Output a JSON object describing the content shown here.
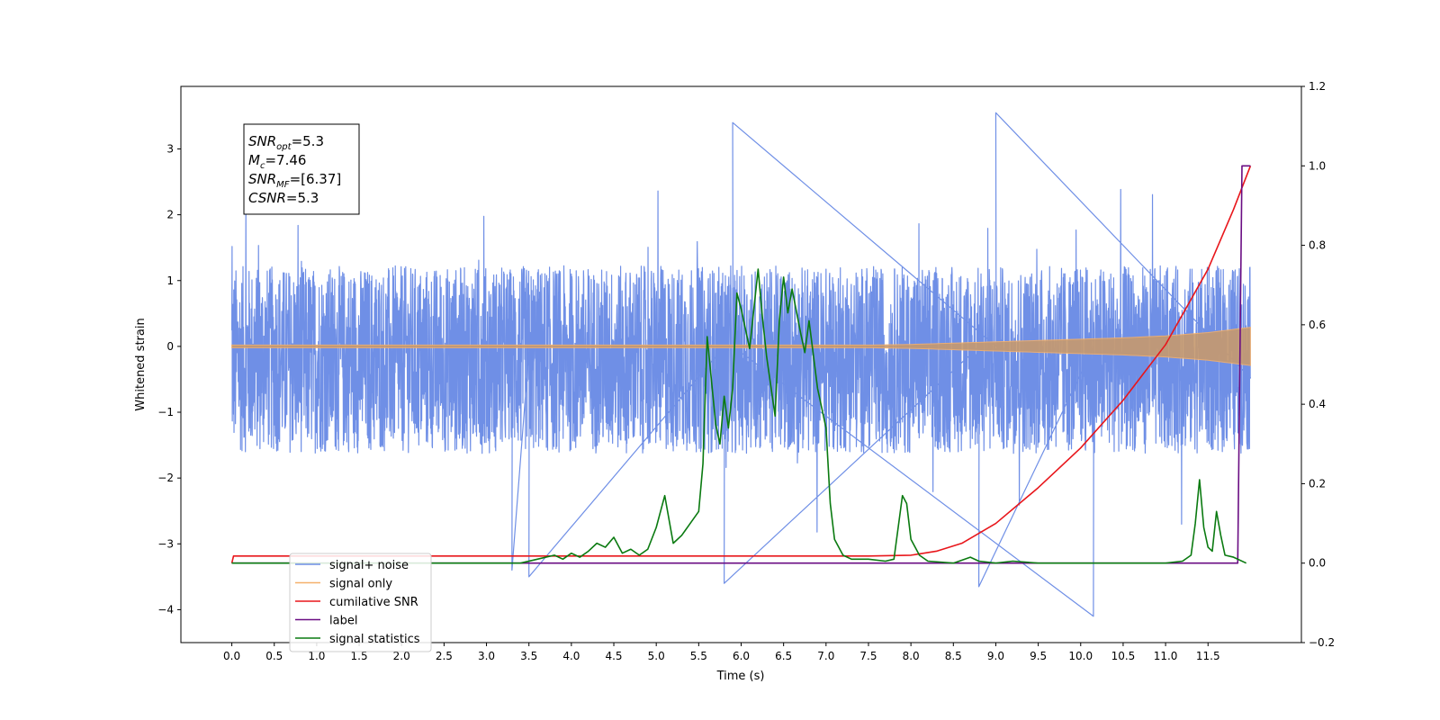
{
  "chart_data": {
    "type": "line",
    "xlabel": "Time (s)",
    "ylabel_left": "Whitened strain",
    "xlim": [
      -0.6,
      12.6
    ],
    "ylim_left": [
      -4.5,
      3.95
    ],
    "ylim_right": [
      -0.2,
      1.2
    ],
    "x_ticks": [
      0.0,
      0.5,
      1.0,
      1.5,
      2.0,
      2.5,
      3.0,
      3.5,
      4.0,
      4.5,
      5.0,
      5.5,
      6.0,
      6.5,
      7.0,
      7.5,
      8.0,
      8.5,
      9.0,
      9.5,
      10.0,
      10.5,
      11.0,
      11.5
    ],
    "x_tick_labels": [
      "0.0",
      "0.5",
      "1.0",
      "1.5",
      "2.0",
      "2.5",
      "3.0",
      "3.5",
      "4.0",
      "4.5",
      "5.0",
      "5.5",
      "6.0",
      "6.5",
      "7.0",
      "7.5",
      "8.0",
      "8.5",
      "9.0",
      "9.5",
      "10.0",
      "10.5",
      "11.0",
      "11.5"
    ],
    "y_left_ticks": [
      3,
      2,
      1,
      0,
      -1,
      -2,
      -3,
      -4
    ],
    "y_left_tick_labels": [
      "3",
      "2",
      "1",
      "0",
      "−1",
      "−2",
      "−3",
      "−4"
    ],
    "y_right_ticks": [
      1.2,
      1.0,
      0.8,
      0.6,
      0.4,
      0.2,
      0.0,
      -0.2
    ],
    "y_right_tick_labels": [
      "1.2",
      "1.0",
      "0.8",
      "0.6",
      "0.4",
      "0.2",
      "0.0",
      "−0.2"
    ],
    "grid": false,
    "legend_position": "bottom-left",
    "info_box": {
      "position": "top-left",
      "lines": [
        {
          "sym": "SNR",
          "sub": "opt",
          "rest": "=5.3"
        },
        {
          "sym": "M",
          "sub": "c",
          "rest": "=7.46"
        },
        {
          "sym": "SNR",
          "sub": "MF",
          "rest": "=[6.37]"
        },
        {
          "sym": "CSNR",
          "sub": "",
          "rest": "=5.3"
        }
      ]
    },
    "series": [
      {
        "name": "signal+ noise",
        "axis": "left",
        "color": "#6f8fe6",
        "kind": "noise",
        "x_range": [
          0.0,
          12.0
        ],
        "typical_range": [
          -1.7,
          1.3
        ],
        "extremes": [
          [
            9.0,
            3.55
          ],
          [
            5.9,
            3.4
          ],
          [
            10.15,
            -4.1
          ],
          [
            8.8,
            -3.65
          ],
          [
            5.8,
            -3.6
          ],
          [
            3.5,
            -3.5
          ],
          [
            3.3,
            -3.4
          ]
        ]
      },
      {
        "name": "signal only",
        "axis": "left",
        "color": "#f5b06a",
        "kind": "chirp",
        "x": [
          0.0,
          7.5,
          8.0,
          8.5,
          9.0,
          9.5,
          10.0,
          10.5,
          11.0,
          11.5,
          12.0
        ],
        "envelope": [
          0.02,
          0.02,
          0.03,
          0.05,
          0.07,
          0.09,
          0.11,
          0.13,
          0.16,
          0.21,
          0.29
        ]
      },
      {
        "name": "cumilative SNR",
        "axis": "right",
        "color": "#e8161b",
        "x": [
          0.0,
          0.02,
          7.5,
          8.0,
          8.3,
          8.6,
          9.0,
          9.5,
          10.0,
          10.5,
          11.0,
          11.5,
          11.8,
          12.0
        ],
        "y": [
          0.0,
          0.018,
          0.018,
          0.02,
          0.03,
          0.05,
          0.1,
          0.19,
          0.29,
          0.41,
          0.55,
          0.74,
          0.89,
          1.0
        ]
      },
      {
        "name": "label",
        "axis": "right",
        "color": "#6a0d83",
        "x": [
          0.0,
          11.85,
          11.9,
          12.0
        ],
        "y": [
          0.0,
          0.0,
          1.0,
          1.0
        ]
      },
      {
        "name": "signal statistics",
        "axis": "right",
        "color": "#0a7a10",
        "x": [
          0.0,
          3.4,
          3.6,
          3.8,
          3.9,
          4.0,
          4.1,
          4.2,
          4.3,
          4.4,
          4.5,
          4.6,
          4.7,
          4.8,
          4.9,
          5.0,
          5.1,
          5.2,
          5.3,
          5.4,
          5.5,
          5.55,
          5.6,
          5.7,
          5.75,
          5.8,
          5.85,
          5.9,
          5.95,
          6.0,
          6.1,
          6.2,
          6.25,
          6.3,
          6.4,
          6.45,
          6.5,
          6.55,
          6.6,
          6.7,
          6.75,
          6.8,
          6.9,
          7.0,
          7.05,
          7.1,
          7.2,
          7.3,
          7.5,
          7.7,
          7.8,
          7.9,
          7.95,
          8.0,
          8.1,
          8.2,
          8.5,
          8.7,
          8.8,
          9.0,
          9.2,
          9.5,
          10.0,
          10.5,
          11.0,
          11.2,
          11.3,
          11.35,
          11.4,
          11.45,
          11.5,
          11.55,
          11.6,
          11.65,
          11.7,
          11.8,
          11.95
        ],
        "y": [
          0.0,
          0.0,
          0.01,
          0.02,
          0.01,
          0.025,
          0.015,
          0.03,
          0.05,
          0.04,
          0.065,
          0.025,
          0.035,
          0.02,
          0.035,
          0.09,
          0.17,
          0.05,
          0.07,
          0.1,
          0.13,
          0.25,
          0.57,
          0.35,
          0.3,
          0.42,
          0.34,
          0.44,
          0.68,
          0.64,
          0.54,
          0.74,
          0.62,
          0.52,
          0.37,
          0.61,
          0.72,
          0.63,
          0.69,
          0.58,
          0.53,
          0.61,
          0.44,
          0.34,
          0.15,
          0.06,
          0.02,
          0.01,
          0.01,
          0.005,
          0.01,
          0.17,
          0.15,
          0.06,
          0.02,
          0.005,
          0.0,
          0.015,
          0.005,
          0.0,
          0.005,
          0.0,
          0.0,
          0.0,
          0.0,
          0.005,
          0.02,
          0.1,
          0.21,
          0.09,
          0.04,
          0.03,
          0.13,
          0.07,
          0.02,
          0.015,
          0.0
        ]
      }
    ]
  }
}
